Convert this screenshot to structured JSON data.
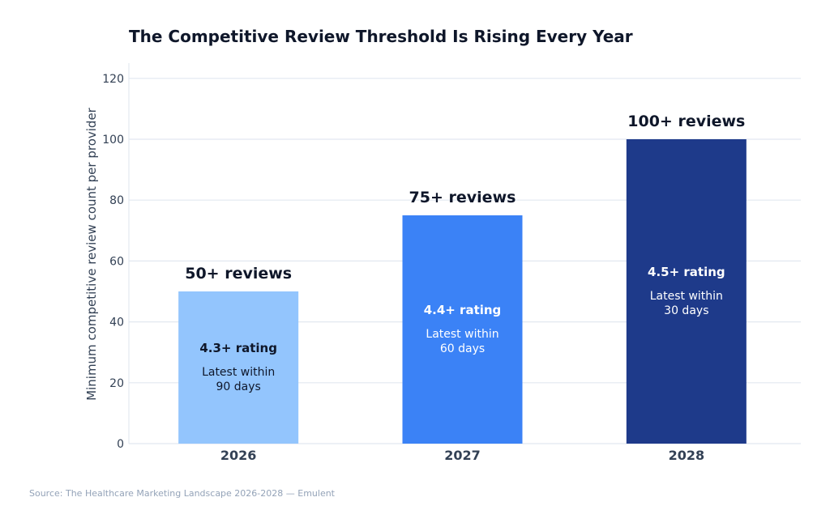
{
  "chart_data": {
    "type": "bar",
    "title": "The Competitive Review Threshold Is Rising Every Year",
    "xlabel": "",
    "ylabel": "Minimum competitive review count per provider",
    "ylim": [
      0,
      125
    ],
    "yticks": [
      0,
      20,
      40,
      60,
      80,
      100,
      120
    ],
    "grid": "horizontal",
    "categories": [
      "2026",
      "2027",
      "2028"
    ],
    "values": [
      50,
      75,
      100
    ],
    "colors": [
      "#93c5fd",
      "#3b82f6",
      "#1e3a8a"
    ],
    "top_labels": [
      "50+ reviews",
      "75+ reviews",
      "100+ reviews"
    ],
    "rating_labels": [
      "4.3+ rating",
      "4.4+ rating",
      "4.5+ rating"
    ],
    "recency_labels": [
      [
        "Latest within",
        "90 days"
      ],
      [
        "Latest within",
        "60 days"
      ],
      [
        "Latest within",
        "30 days"
      ]
    ],
    "inner_text_colors": [
      "#0f172a",
      "#ffffff",
      "#ffffff"
    ]
  },
  "source": "Source: The Healthcare Marketing Landscape 2026-2028 — Emulent"
}
